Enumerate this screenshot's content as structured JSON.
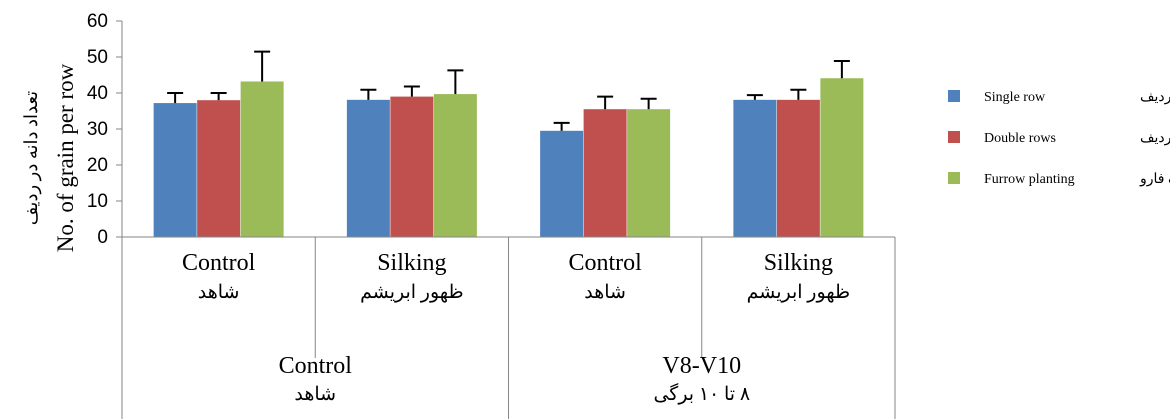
{
  "chart_data": {
    "type": "bar",
    "ylabel": "No. of grain per row",
    "ylabel_fa": "تعداد دانه در ردیف",
    "ylim": [
      0,
      60
    ],
    "yticks": [
      "0",
      "10",
      "20",
      "30",
      "40",
      "50",
      "60"
    ],
    "groups": [
      {
        "label": "Control",
        "label_fa": "شاهد",
        "subcategories": [
          {
            "label": "Control",
            "label_fa": "شاهد"
          },
          {
            "label": "Silking",
            "label_fa": "ظهور ابریشم"
          }
        ]
      },
      {
        "label": "V8-V10",
        "label_fa": "۸ تا ۱۰ برگی",
        "subcategories": [
          {
            "label": "Control",
            "label_fa": "شاهد"
          },
          {
            "label": "Silking",
            "label_fa": "ظهور ابریشم"
          }
        ]
      }
    ],
    "series": [
      {
        "name": "Single row",
        "name_fa": "یک ردیف",
        "color": "#4F81BD",
        "values": [
          37.2,
          38.1,
          29.5,
          38.1
        ],
        "errors": [
          2.8,
          2.8,
          2.2,
          1.3
        ]
      },
      {
        "name": "Double rows",
        "name_fa": "دو ردیف",
        "color": "#C0504D",
        "values": [
          38.0,
          39.0,
          35.5,
          38.1
        ],
        "errors": [
          2.0,
          2.8,
          3.5,
          2.8
        ]
      },
      {
        "name": "Furrow planting",
        "name_fa": "کف فارو",
        "color": "#9BBB59",
        "values": [
          43.2,
          39.7,
          35.5,
          44.1
        ],
        "errors": [
          8.3,
          6.6,
          2.9,
          4.8
        ]
      }
    ],
    "grid": false,
    "legend": "right"
  }
}
